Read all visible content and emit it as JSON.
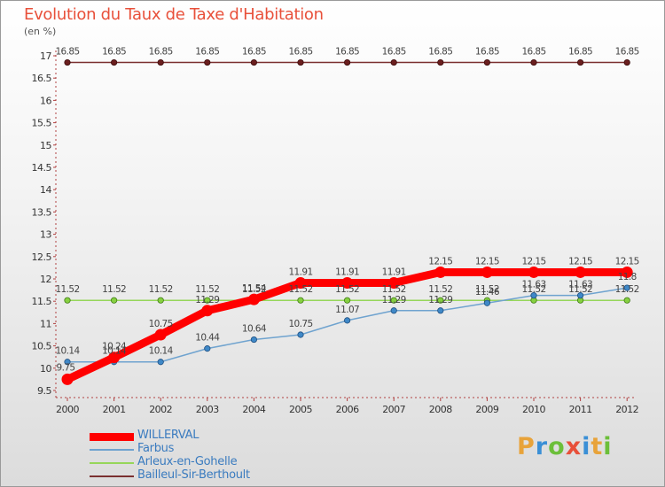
{
  "title": "Evolution du Taux de Taxe d'Habitation",
  "unit_label": "(en %)",
  "brand": {
    "text": "Proxiti",
    "colors": [
      "#e8a33a",
      "#3a8fd6",
      "#6cbf3a",
      "#e8503a",
      "#3a8fd6",
      "#e8a33a",
      "#6cbf3a"
    ]
  },
  "chart_data": {
    "type": "line",
    "title": "Evolution du Taux de Taxe d'Habitation",
    "ylabel": "(en %)",
    "xlabel": "",
    "x": [
      "2000",
      "2001",
      "2002",
      "2003",
      "2004",
      "2005",
      "2006",
      "2007",
      "2008",
      "2009",
      "2010",
      "2011",
      "2012"
    ],
    "ylim": [
      9.5,
      17
    ],
    "yticks": [
      "9.5",
      "10",
      "10.5",
      "11",
      "11.5",
      "12",
      "12.5",
      "13",
      "13.5",
      "14",
      "14.5",
      "15",
      "15.5",
      "16",
      "16.5",
      "17"
    ],
    "grid": false,
    "legend_position": "bottom-left",
    "series": [
      {
        "name": "WILLERVAL",
        "color": "#ff0000",
        "values": [
          9.75,
          10.24,
          10.75,
          11.29,
          11.54,
          11.91,
          11.91,
          11.91,
          12.15,
          12.15,
          12.15,
          12.15,
          12.15
        ],
        "labels": [
          "9.75",
          "10.24",
          "10.75",
          "11.29",
          "11.54",
          "11.91",
          "11.91",
          "11.91",
          "12.15",
          "12.15",
          "12.15",
          "12.15",
          "12.15"
        ]
      },
      {
        "name": "Farbus",
        "color": "#6fa3cf",
        "values": [
          10.14,
          10.14,
          10.14,
          10.44,
          10.64,
          10.75,
          11.07,
          11.29,
          11.29,
          11.46,
          11.63,
          11.63,
          11.8
        ],
        "labels": [
          "10.14",
          "10.14",
          "10.14",
          "10.44",
          "10.64",
          "10.75",
          "11.07",
          "11.29",
          "11.29",
          "11.46",
          "11.63",
          "11.63",
          "11.8"
        ]
      },
      {
        "name": "Arleux-en-Gohelle",
        "color": "#96d65a",
        "values": [
          11.52,
          11.52,
          11.52,
          11.52,
          11.52,
          11.52,
          11.52,
          11.52,
          11.52,
          11.52,
          11.52,
          11.52,
          11.52
        ],
        "labels": [
          "11.52",
          "11.52",
          "11.52",
          "11.52",
          "11.52",
          "11.52",
          "11.52",
          "11.52",
          "11.52",
          "11.52",
          "11.52",
          "11.52",
          "11.52"
        ]
      },
      {
        "name": "Bailleul-Sir-Berthoult",
        "color": "#7a3030",
        "values": [
          16.85,
          16.85,
          16.85,
          16.85,
          16.85,
          16.85,
          16.85,
          16.85,
          16.85,
          16.85,
          16.85,
          16.85,
          16.85
        ],
        "labels": [
          "16.85",
          "16.85",
          "16.85",
          "16.85",
          "16.85",
          "16.85",
          "16.85",
          "16.85",
          "16.85",
          "16.85",
          "16.85",
          "16.85",
          "16.85"
        ]
      }
    ]
  }
}
